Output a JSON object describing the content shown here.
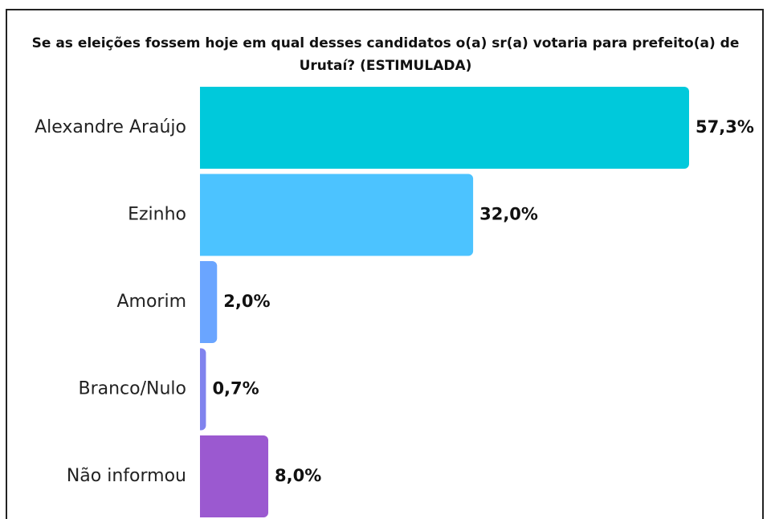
{
  "chart_data": {
    "type": "bar",
    "orientation": "horizontal",
    "title": "Se as eleições fossem hoje em qual desses candidatos o(a) sr(a) votaria para prefeito(a) de Urutaí? (ESTIMULADA)",
    "categories": [
      "Alexandre Araújo",
      "Ezinho",
      "Amorim",
      "Branco/Nulo",
      "Não informou"
    ],
    "values": [
      57.3,
      32.0,
      2.0,
      0.7,
      8.0
    ],
    "value_labels": [
      "57,3%",
      "32,0%",
      "2,0%",
      "0,7%",
      "8,0%"
    ],
    "colors": [
      "#00c9db",
      "#4cc3ff",
      "#6aa5ff",
      "#8083ee",
      "#9b59d0"
    ]
  }
}
